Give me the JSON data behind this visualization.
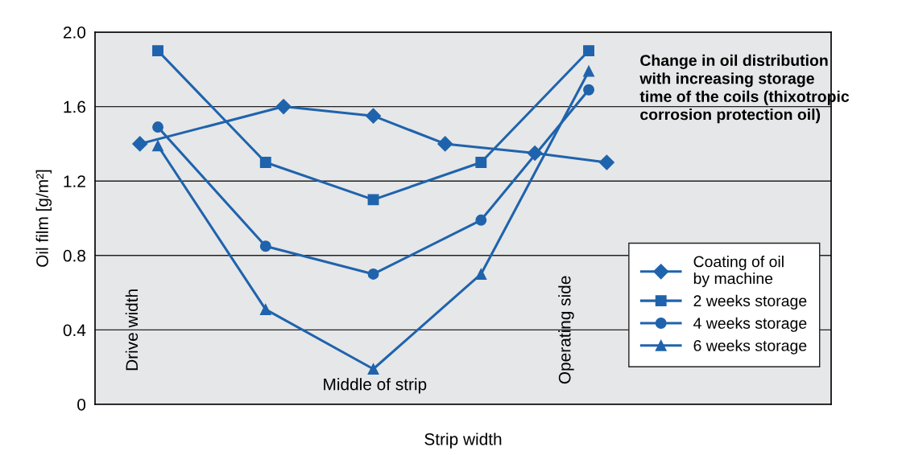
{
  "chart_data": {
    "type": "line",
    "xlabel": "Strip width",
    "ylabel": "Oil film [g/m²]",
    "categories": [
      null,
      null,
      null,
      null,
      null,
      null,
      null,
      null,
      null,
      null,
      null,
      null,
      null,
      null,
      null,
      null,
      null,
      null,
      null,
      null,
      null,
      null,
      null,
      null,
      null,
      null,
      null,
      null,
      null,
      null,
      null,
      null,
      null,
      null,
      null,
      null,
      null,
      null,
      null,
      null,
      null
    ],
    "ylim": [
      0,
      2.0
    ],
    "yticks": [
      0,
      0.4,
      0.8,
      1.2,
      1.6,
      {
        "value": 2.0,
        "label": "2.0"
      }
    ],
    "tick_labels": "y",
    "grid": "y",
    "legend": "right",
    "series": [
      {
        "name": "Coating of oil\nby machine",
        "color": "#1f63ad",
        "marker": "diamond",
        "values": [
          null,
          null,
          1.4,
          null,
          null,
          null,
          null,
          null,
          null,
          null,
          1.6,
          null,
          null,
          null,
          null,
          1.55,
          null,
          null,
          null,
          1.4,
          null,
          null,
          null,
          null,
          1.35,
          null,
          null,
          null,
          1.3,
          null,
          null,
          null,
          null,
          null,
          null,
          null,
          null,
          null,
          null,
          null,
          null
        ]
      },
      {
        "name": "2 weeks storage",
        "color": "#1f63ad",
        "marker": "square",
        "values": [
          null,
          null,
          null,
          1.9,
          null,
          null,
          null,
          null,
          null,
          1.3,
          null,
          null,
          null,
          null,
          null,
          1.1,
          null,
          null,
          null,
          null,
          null,
          1.3,
          null,
          null,
          null,
          null,
          null,
          1.9,
          null,
          null,
          null,
          null,
          null,
          null,
          null,
          null,
          null,
          null,
          null,
          null,
          null
        ]
      },
      {
        "name": "4 weeks storage",
        "color": "#1f63ad",
        "marker": "circle",
        "values": [
          null,
          null,
          null,
          1.49,
          null,
          null,
          null,
          null,
          null,
          0.85,
          null,
          null,
          null,
          null,
          null,
          0.7,
          null,
          null,
          null,
          null,
          null,
          0.99,
          null,
          null,
          null,
          null,
          null,
          1.69,
          null,
          null,
          null,
          null,
          null,
          null,
          null,
          null,
          null,
          null,
          null,
          null,
          null
        ]
      },
      {
        "name": "6 weeks storage",
        "color": "#1f63ad",
        "marker": "triangle",
        "values": [
          null,
          null,
          null,
          1.39,
          null,
          null,
          null,
          null,
          null,
          0.51,
          null,
          null,
          null,
          null,
          null,
          0.19,
          null,
          null,
          null,
          null,
          null,
          0.7,
          null,
          null,
          null,
          null,
          null,
          1.79,
          null,
          null,
          null,
          null,
          null,
          null,
          null,
          null,
          null,
          null,
          null,
          null,
          null
        ]
      }
    ],
    "annotations": [
      "Drive width",
      "Middle of strip",
      "Operating side",
      "Change in oil distribution\nwith increasing storage\ntime of the coils (thixotropic\ncorrosion protection oil)"
    ]
  }
}
